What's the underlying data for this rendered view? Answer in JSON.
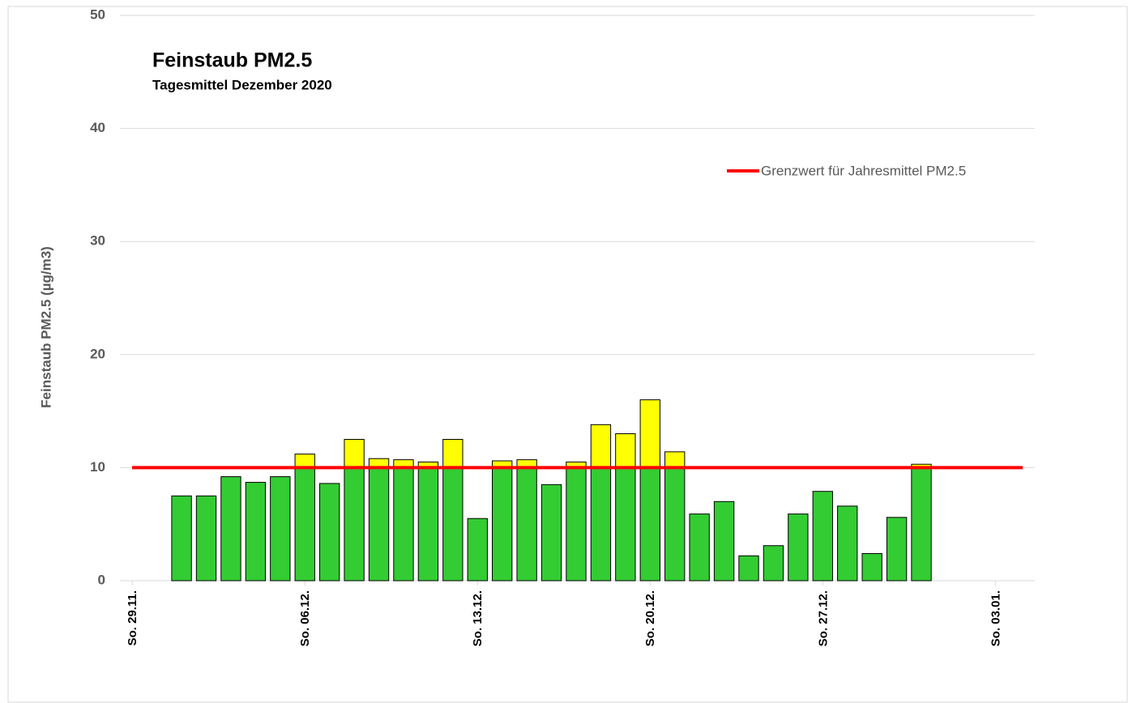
{
  "chart_data": {
    "type": "bar",
    "title": "Feinstaub PM2.5",
    "subtitle": "Tagesmittel Dezember 2020",
    "y_label": "Feinstaub PM2.5 (µg/m3)",
    "x": [
      1,
      2,
      3,
      4,
      5,
      6,
      7,
      8,
      9,
      10,
      11,
      12,
      13,
      14,
      15,
      16,
      17,
      18,
      19,
      20,
      21,
      22,
      23,
      24,
      25,
      26,
      27,
      28,
      29,
      30,
      31
    ],
    "values": [
      7.5,
      7.5,
      9.2,
      8.7,
      9.2,
      11.2,
      8.6,
      12.5,
      10.8,
      10.7,
      10.5,
      12.5,
      5.5,
      10.6,
      10.7,
      8.5,
      10.5,
      13.8,
      13.0,
      16.0,
      11.4,
      5.9,
      7.0,
      2.2,
      3.1,
      5.9,
      7.9,
      6.6,
      2.4,
      5.6,
      10.3
    ],
    "color": "#33cc33",
    "above_color": "#ffff00",
    "threshold": {
      "name": "Grenzwert für Jahresmittel PM2.5",
      "value": 10,
      "color": "#ff0000"
    },
    "xlim": [
      -1.5,
      35.6
    ],
    "xticks": [
      {
        "value": -1,
        "label": "So. 29.11."
      },
      {
        "value": 6,
        "label": "So. 06.12."
      },
      {
        "value": 13,
        "label": "So. 13.12."
      },
      {
        "value": 20,
        "label": "So. 20.12."
      },
      {
        "value": 27,
        "label": "So. 27.12."
      },
      {
        "value": 34,
        "label": "So. 03.01."
      }
    ],
    "ylim": [
      0,
      50
    ],
    "yticks": [
      0,
      10,
      20,
      30,
      40,
      50
    ],
    "grid": true
  }
}
